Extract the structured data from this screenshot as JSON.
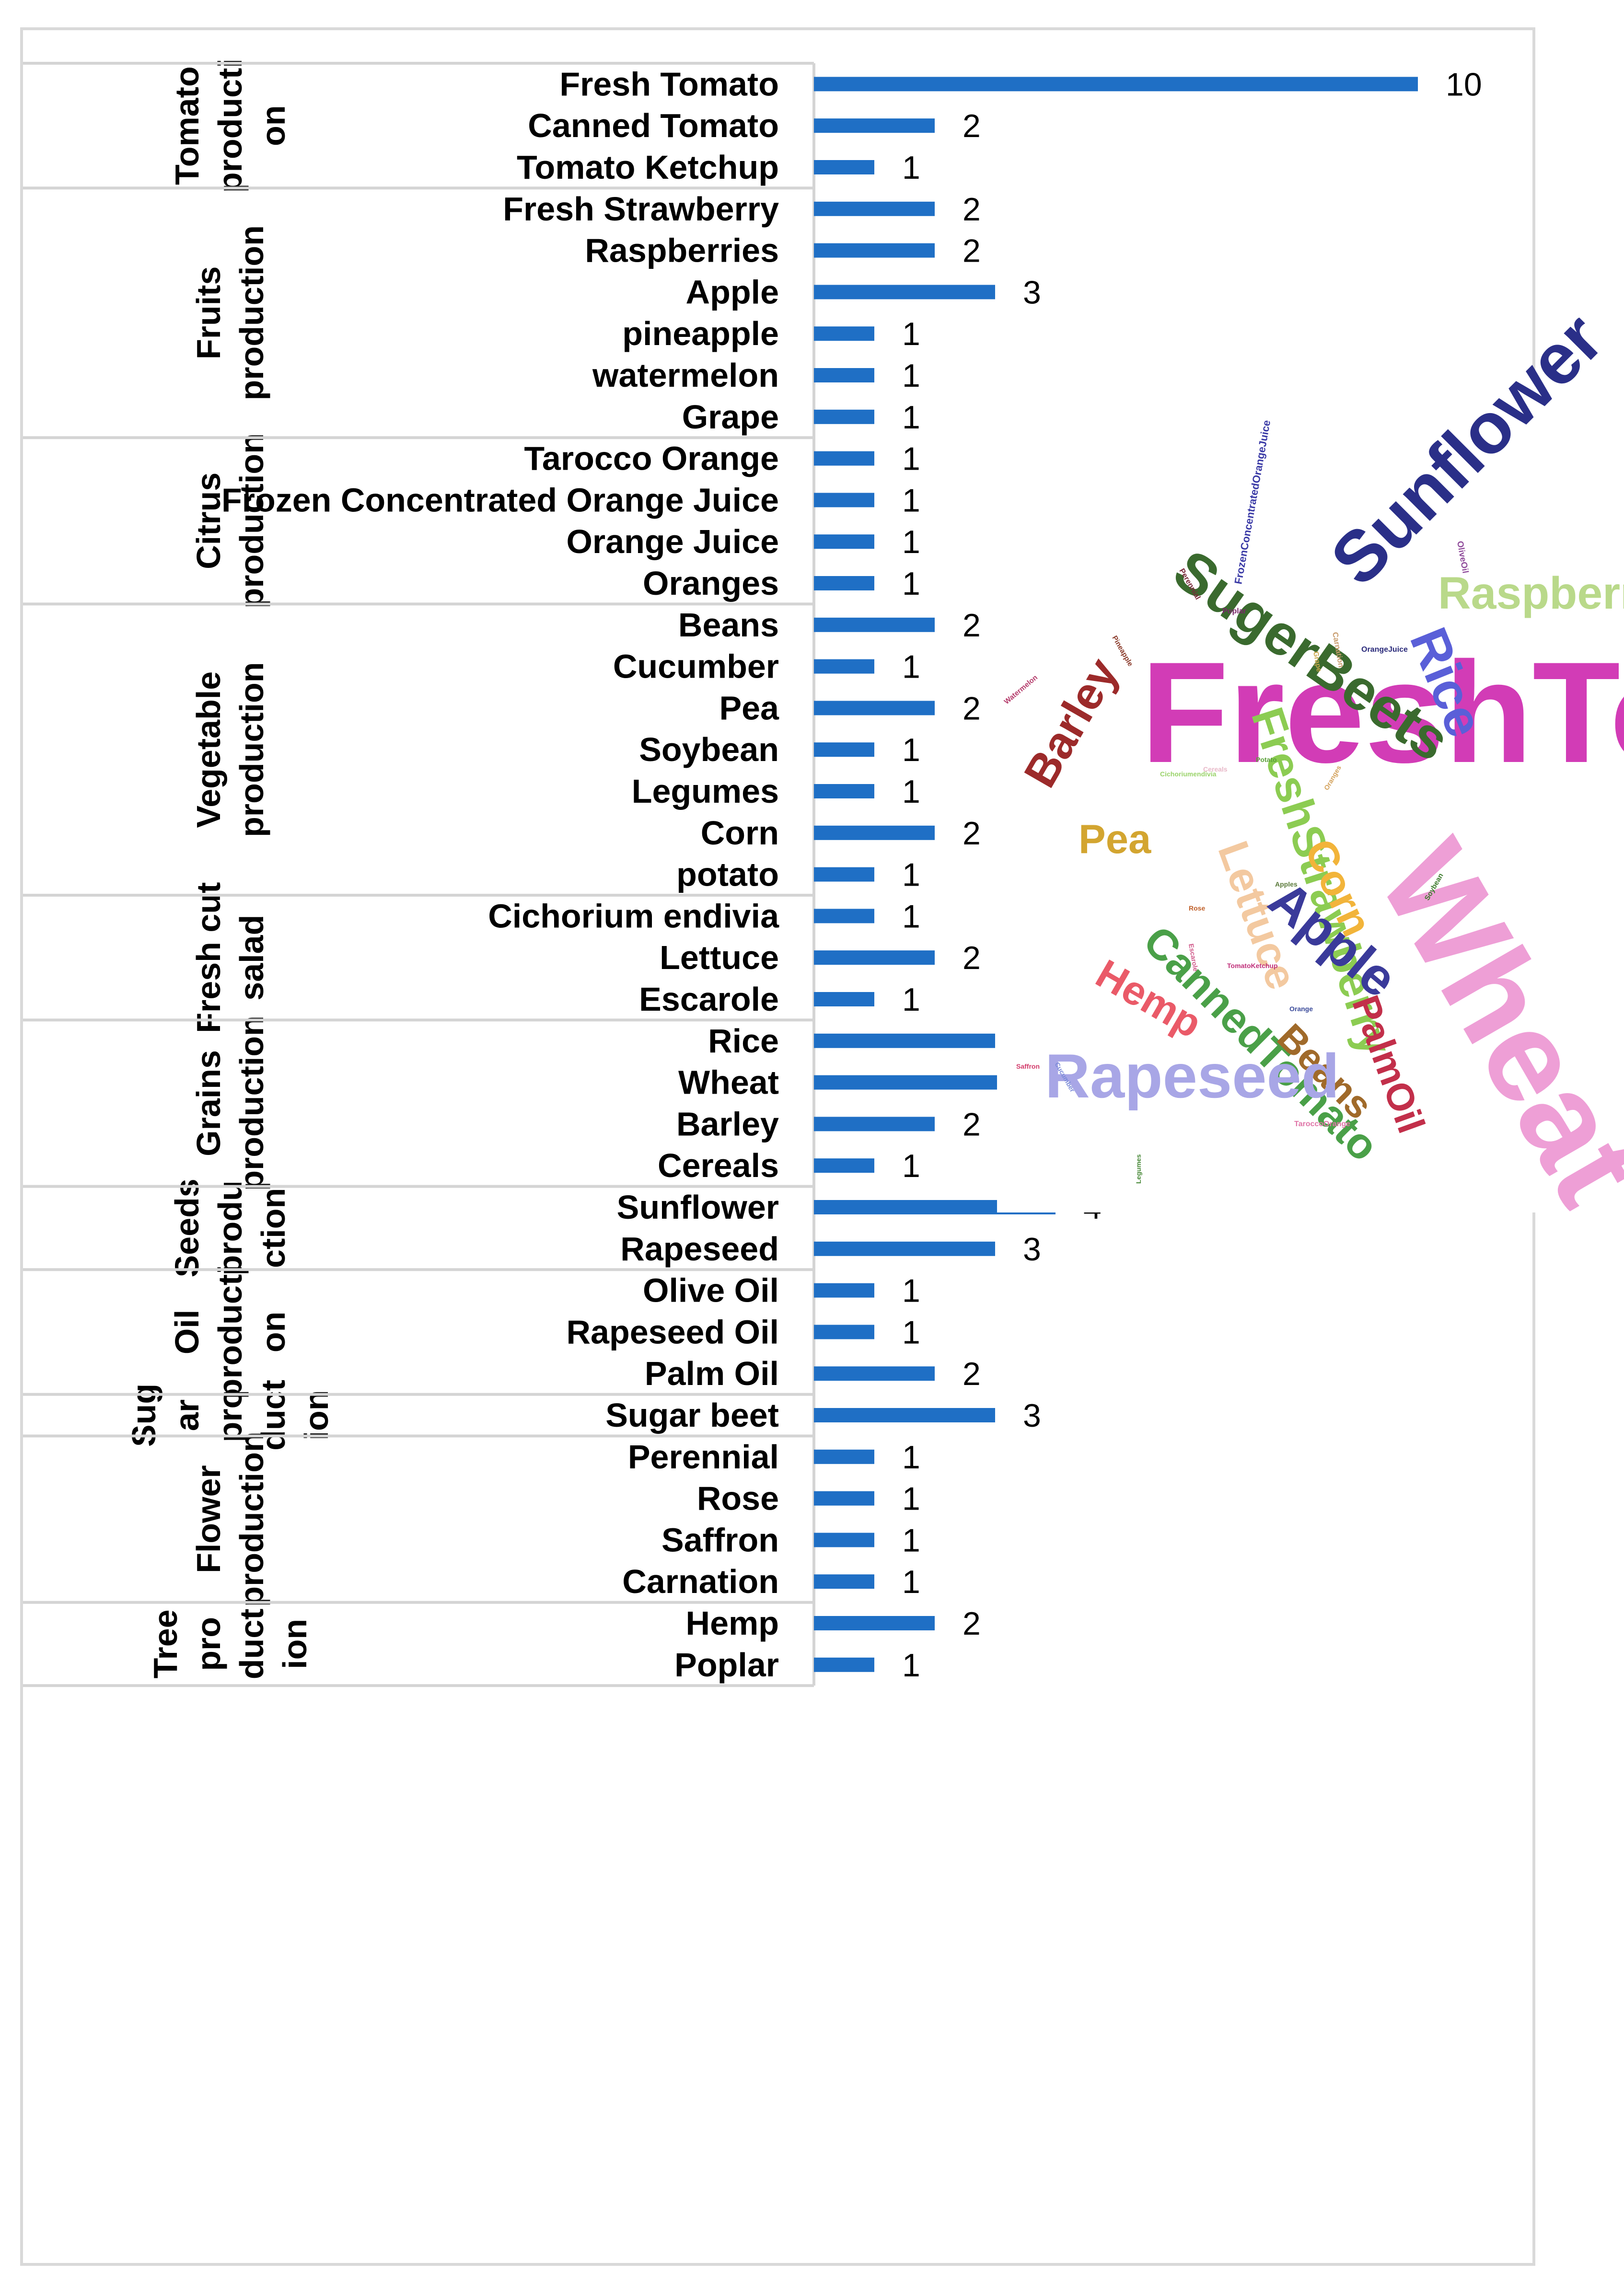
{
  "chart_data": {
    "type": "bar",
    "orientation": "horizontal",
    "xlim": [
      0,
      10
    ],
    "bar_color": "#1f6fc5",
    "groups": [
      {
        "lines": [
          "Tomato",
          "producti",
          "on"
        ],
        "categories": [
          "Fresh Tomato",
          "Canned Tomato",
          "Tomato Ketchup"
        ],
        "values": [
          10,
          2,
          1
        ]
      },
      {
        "lines": [
          "Fruits",
          "production"
        ],
        "categories": [
          "Fresh Strawberry",
          "Raspberries",
          "Apple",
          "pineapple",
          "watermelon",
          "Grape"
        ],
        "values": [
          2,
          2,
          3,
          1,
          1,
          1
        ]
      },
      {
        "lines": [
          "Citrus",
          "production"
        ],
        "categories": [
          "Tarocco Orange",
          "Frozen Concentrated Orange Juice",
          "Orange Juice",
          "Oranges"
        ],
        "values": [
          1,
          1,
          1,
          1
        ]
      },
      {
        "lines": [
          "Vegetable",
          "production"
        ],
        "categories": [
          "Beans",
          "Cucumber",
          "Pea",
          "Soybean",
          "Legumes",
          "Corn",
          "potato"
        ],
        "values": [
          2,
          1,
          2,
          1,
          1,
          2,
          1
        ]
      },
      {
        "lines": [
          "Fresh cut",
          "salad"
        ],
        "categories": [
          "Cichorium endivia",
          "Lettuce",
          "Escarole"
        ],
        "values": [
          1,
          2,
          1
        ]
      },
      {
        "lines": [
          "Grains",
          "production"
        ],
        "categories": [
          "Rice",
          "Wheat",
          "Barley",
          "Cereals"
        ],
        "values": [
          3,
          9,
          2,
          1
        ]
      },
      {
        "lines": [
          "Seeds",
          "produ",
          "ction"
        ],
        "categories": [
          "Sunflower",
          "Rapeseed"
        ],
        "values": [
          4,
          3
        ]
      },
      {
        "lines": [
          "Oil",
          "producti",
          "on"
        ],
        "categories": [
          "Olive Oil",
          "Rapeseed Oil",
          "Palm Oil"
        ],
        "values": [
          1,
          1,
          2
        ]
      },
      {
        "lines": [
          "Sug",
          "ar",
          "pro",
          "duct",
          "ion"
        ],
        "categories": [
          "Sugar beet"
        ],
        "values": [
          3
        ]
      },
      {
        "lines": [
          "Flower",
          "production"
        ],
        "categories": [
          "Perennial",
          "Rose",
          "Saffron",
          "Carnation"
        ],
        "values": [
          1,
          1,
          1,
          1
        ]
      },
      {
        "lines": [
          "Tree",
          "pro",
          "duct",
          "ion"
        ],
        "categories": [
          "Hemp",
          "Poplar"
        ],
        "values": [
          2,
          1
        ]
      }
    ]
  },
  "word_cloud": {
    "words": [
      {
        "text": "FreshTomato",
        "color": "#d23cb6"
      },
      {
        "text": "Wheat",
        "color": "#ee9fd6"
      },
      {
        "text": "Sunflower",
        "color": "#2a2f88"
      },
      {
        "text": "SugerBeets",
        "color": "#3a6a2e"
      },
      {
        "text": "Rice",
        "color": "#5a5fd8"
      },
      {
        "text": "Raspberries",
        "color": "#b9d98a"
      },
      {
        "text": "FreshStrawberry",
        "color": "#8ccc52"
      },
      {
        "text": "Barley",
        "color": "#9c2a2a"
      },
      {
        "text": "Pea",
        "color": "#d3a530"
      },
      {
        "text": "Lettuce",
        "color": "#f3c9a0"
      },
      {
        "text": "Corn",
        "color": "#f2b43a"
      },
      {
        "text": "Apple",
        "color": "#3a3a9a"
      },
      {
        "text": "CannedTomato",
        "color": "#4aa048"
      },
      {
        "text": "Hemp",
        "color": "#ea5a68"
      },
      {
        "text": "PalmOil",
        "color": "#c22f4a"
      },
      {
        "text": "Beans",
        "color": "#a06a2a"
      },
      {
        "text": "Rapeseed",
        "color": "#a8a6e6"
      },
      {
        "text": "FrozenConcentratedOrangeJuice",
        "color": "#3a3aa6"
      },
      {
        "text": "OliveOil",
        "color": "#8f4a9a"
      },
      {
        "text": "Perennial",
        "color": "#7a2a3a"
      },
      {
        "text": "Poplar",
        "color": "#7a2a6a"
      },
      {
        "text": "Carnation",
        "color": "#c79a6a"
      },
      {
        "text": "OrangeJuice",
        "color": "#2a2a7a"
      },
      {
        "text": "Pineapple",
        "color": "#8a3a2a"
      },
      {
        "text": "Watermelon",
        "color": "#b43a6a"
      },
      {
        "text": "Grape",
        "color": "#caa64a"
      },
      {
        "text": "Potato",
        "color": "#5aa03a"
      },
      {
        "text": "Oranges",
        "color": "#d3a15a"
      },
      {
        "text": "Cereals",
        "color": "#e8b8c8"
      },
      {
        "text": "Escarole",
        "color": "#d05a8a"
      },
      {
        "text": "Cucumber",
        "color": "#7a8ad8"
      },
      {
        "text": "Saffron",
        "color": "#d23a6a"
      },
      {
        "text": "Legumes",
        "color": "#4a8a3a"
      },
      {
        "text": "TomatoKetchup",
        "color": "#c0307a"
      },
      {
        "text": "Orange",
        "color": "#3a4a9a"
      },
      {
        "text": "TaroccoOrange",
        "color": "#e076a8"
      },
      {
        "text": "Soybean",
        "color": "#3a7a2a"
      },
      {
        "text": "Cichoriumendivia",
        "color": "#9ad36a"
      },
      {
        "text": "Rose",
        "color": "#c0602a"
      },
      {
        "text": "Apples",
        "color": "#5a7a3a"
      }
    ]
  }
}
